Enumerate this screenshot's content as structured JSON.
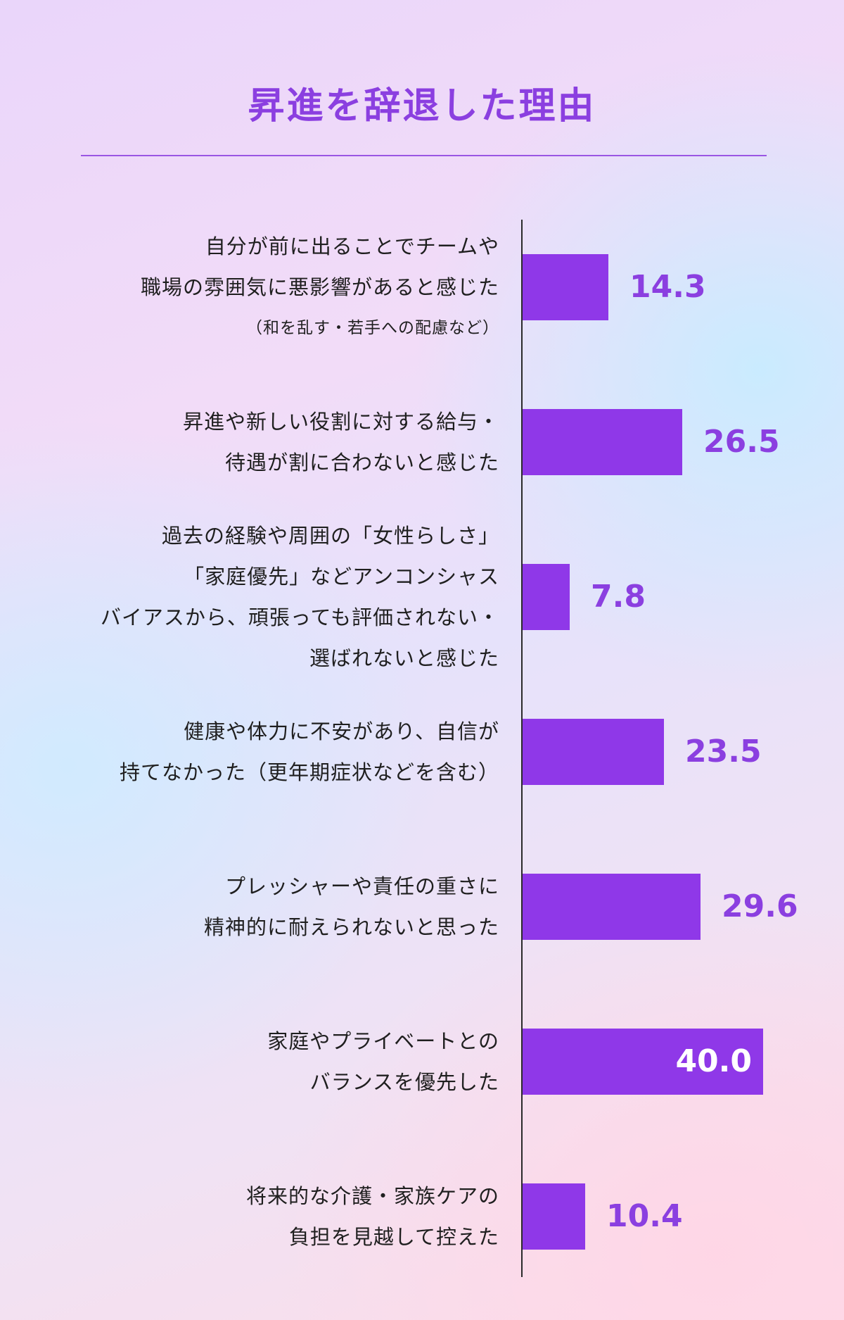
{
  "chart_data": {
    "type": "bar",
    "orientation": "horizontal",
    "title": "昇進を辞退した理由",
    "xlim": [
      0,
      40
    ],
    "categories": [
      "自分が前に出ることでチームや職場の雰囲気に悪影響があると感じた（和を乱す・若手への配慮など）",
      "昇進や新しい役割に対する給与・待遇が割に合わないと感じた",
      "過去の経験や周囲の「女性らしさ」「家庭優先」などアンコンシャスバイアスから、頑張っても評価されない・選ばれないと感じた",
      "健康や体力に不安があり、自信が持てなかった（更年期症状などを含む）",
      "プレッシャーや責任の重さに精神的に耐えられないと思った",
      "家庭やプライベートとのバランスを優先した",
      "将来的な介護・家族ケアの負担を見越して控えた"
    ],
    "values": [
      14.3,
      26.5,
      7.8,
      23.5,
      29.6,
      40.0,
      10.4
    ],
    "value_labels": [
      "14.3",
      "26.5",
      "7.8",
      "23.5",
      "29.6",
      "40.0",
      "10.4"
    ],
    "label_lines": [
      [
        "自分が前に出ることでチームや",
        "職場の雰囲気に悪影響があると感じた",
        "（和を乱す・若手への配慮など）"
      ],
      [
        "昇進や新しい役割に対する給与・",
        "待遇が割に合わないと感じた"
      ],
      [
        "過去の経験や周囲の「女性らしさ」",
        "「家庭優先」などアンコンシャス",
        "バイアスから、頑張っても評価されない・",
        "選ばれないと感じた"
      ],
      [
        "健康や体力に不安があり、自信が",
        "持てなかった（更年期症状などを含む）"
      ],
      [
        "プレッシャーや責任の重さに",
        "精神的に耐えられないと思った"
      ],
      [
        "家庭やプライベートとの",
        "バランスを優先した"
      ],
      [
        "将来的な介護・家族ケアの",
        "負担を見越して控えた"
      ]
    ],
    "bar_color": "#8f38e8",
    "value_color": "#8b3fe0",
    "title_color": "#8b3fe0",
    "grid": false,
    "legend": "none"
  }
}
